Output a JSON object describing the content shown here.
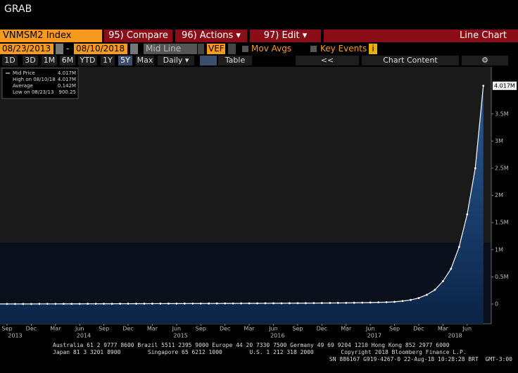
{
  "header": {
    "title": "GRAB"
  },
  "toolbar": {
    "security": "VNMSM2 Index",
    "compare": "95) Compare",
    "actions": "96) Actions ▾",
    "edit": "97) Edit ▾",
    "chart_type": "Line Chart",
    "start_date": "08/23/2013",
    "dash": "-",
    "end_date": "08/10/2018",
    "line_style": "Mid Line",
    "currency": "VEF",
    "mov_avgs": "Mov Avgs",
    "key_events": "Key Events",
    "info": "i",
    "periods": [
      "1D",
      "3D",
      "1M",
      "6M",
      "YTD",
      "1Y",
      "5Y",
      "Max"
    ],
    "frequency": "Daily ▾",
    "table": "Table",
    "collapse": "<<",
    "chart_content": "Chart Content"
  },
  "chart_data": {
    "type": "line",
    "x": [
      "2013-08",
      "2013-09",
      "2013-10",
      "2013-11",
      "2013-12",
      "2014-01",
      "2014-02",
      "2014-03",
      "2014-04",
      "2014-05",
      "2014-06",
      "2014-07",
      "2014-08",
      "2014-09",
      "2014-10",
      "2014-11",
      "2014-12",
      "2015-01",
      "2015-02",
      "2015-03",
      "2015-04",
      "2015-05",
      "2015-06",
      "2015-07",
      "2015-08",
      "2015-09",
      "2015-10",
      "2015-11",
      "2015-12",
      "2016-01",
      "2016-02",
      "2016-03",
      "2016-04",
      "2016-05",
      "2016-06",
      "2016-07",
      "2016-08",
      "2016-09",
      "2016-10",
      "2016-11",
      "2016-12",
      "2017-01",
      "2017-02",
      "2017-03",
      "2017-04",
      "2017-05",
      "2017-06",
      "2017-07",
      "2017-08",
      "2017-09",
      "2017-10",
      "2017-11",
      "2017-12",
      "2018-01",
      "2018-02",
      "2018-03",
      "2018-04",
      "2018-05",
      "2018-06",
      "2018-07",
      "2018-08"
    ],
    "series": [
      {
        "name": "Mid Price",
        "color": "#ffffff",
        "values": [
          900.25,
          1100,
          1300,
          1500,
          1800,
          2000,
          2200,
          2400,
          2700,
          3000,
          3300,
          3600,
          4000,
          4400,
          4800,
          5200,
          5600,
          6000,
          6400,
          6800,
          7200,
          7600,
          8000,
          8500,
          9000,
          9500,
          10000,
          10500,
          11000,
          11500,
          12000,
          12500,
          13000,
          13500,
          14000,
          14500,
          15000,
          15500,
          16000,
          17000,
          18000,
          19000,
          20000,
          21000,
          23000,
          25000,
          27000,
          30000,
          34000,
          40000,
          55000,
          75000,
          110000,
          170000,
          260000,
          420000,
          650000,
          1050000,
          1650000,
          2500000,
          4017000
        ]
      }
    ],
    "last_value_label": "4.017M",
    "ylim": [
      -363000,
      4365000
    ],
    "yticks": [
      {
        "value": 0,
        "label": "0"
      },
      {
        "value": 500000,
        "label": "0.5M"
      },
      {
        "value": 1000000,
        "label": "1M"
      },
      {
        "value": 1500000,
        "label": "1.5M"
      },
      {
        "value": 2000000,
        "label": "2M"
      },
      {
        "value": 2500000,
        "label": "2.5M"
      },
      {
        "value": 3000000,
        "label": "3M"
      },
      {
        "value": 3500000,
        "label": "3.5M"
      }
    ],
    "xticks": [
      {
        "value": "2013-09",
        "label": "Sep"
      },
      {
        "value": "2013-12",
        "label": "Dec"
      },
      {
        "value": "2014-03",
        "label": "Mar"
      },
      {
        "value": "2014-06",
        "label": "Jun"
      },
      {
        "value": "2014-09",
        "label": "Sep"
      },
      {
        "value": "2014-12",
        "label": "Dec"
      },
      {
        "value": "2015-03",
        "label": "Mar"
      },
      {
        "value": "2015-06",
        "label": "Jun"
      },
      {
        "value": "2015-09",
        "label": "Sep"
      },
      {
        "value": "2015-12",
        "label": "Dec"
      },
      {
        "value": "2016-03",
        "label": "Mar"
      },
      {
        "value": "2016-06",
        "label": "Jun"
      },
      {
        "value": "2016-09",
        "label": "Sep"
      },
      {
        "value": "2016-12",
        "label": "Dec"
      },
      {
        "value": "2017-03",
        "label": "Mar"
      },
      {
        "value": "2017-06",
        "label": "Jun"
      },
      {
        "value": "2017-09",
        "label": "Sep"
      },
      {
        "value": "2017-12",
        "label": "Dec"
      },
      {
        "value": "2018-03",
        "label": "Mar"
      },
      {
        "value": "2018-06",
        "label": "Jun"
      }
    ],
    "years": [
      "2013",
      "2014",
      "2015",
      "2016",
      "2017",
      "2018"
    ],
    "stats": [
      {
        "name": "Mid Price",
        "value": 4017000,
        "value_label": "4.017M"
      },
      {
        "name": "High on 08/10/18",
        "value": 4017000,
        "value_label": "4.017M"
      },
      {
        "name": "Average",
        "value": 142000,
        "value_label": "0.142M"
      },
      {
        "name": "Low on 08/23/13",
        "value": 900.25,
        "value_label": "900.25"
      }
    ],
    "grid": false
  },
  "footer": {
    "line1": "Australia 61 2 9777 8600 Brazil 5511 2395 9000 Europe 44 20 7330 7500 Germany 49 69 9204 1210 Hong Kong 852 2977 6000",
    "line2": "Japan 81 3 3201 8900        Singapore 65 6212 1000        U.S. 1 212 318 2000        Copyright 2018 Bloomberg Finance L.P.",
    "line3": "SN 886167 G919-4267-0 22-Aug-18 10:28:28 BRT  GMT-3:00"
  }
}
